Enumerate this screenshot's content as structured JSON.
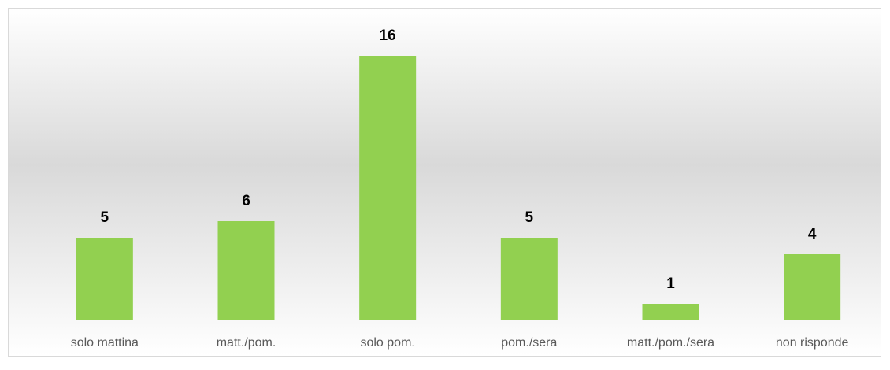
{
  "chart_data": {
    "type": "bar",
    "categories": [
      "solo mattina",
      "matt./pom.",
      "solo pom.",
      "pom./sera",
      "matt./pom./sera",
      "non risponde"
    ],
    "values": [
      5,
      6,
      16,
      5,
      1,
      4
    ],
    "color": "#92d050"
  }
}
